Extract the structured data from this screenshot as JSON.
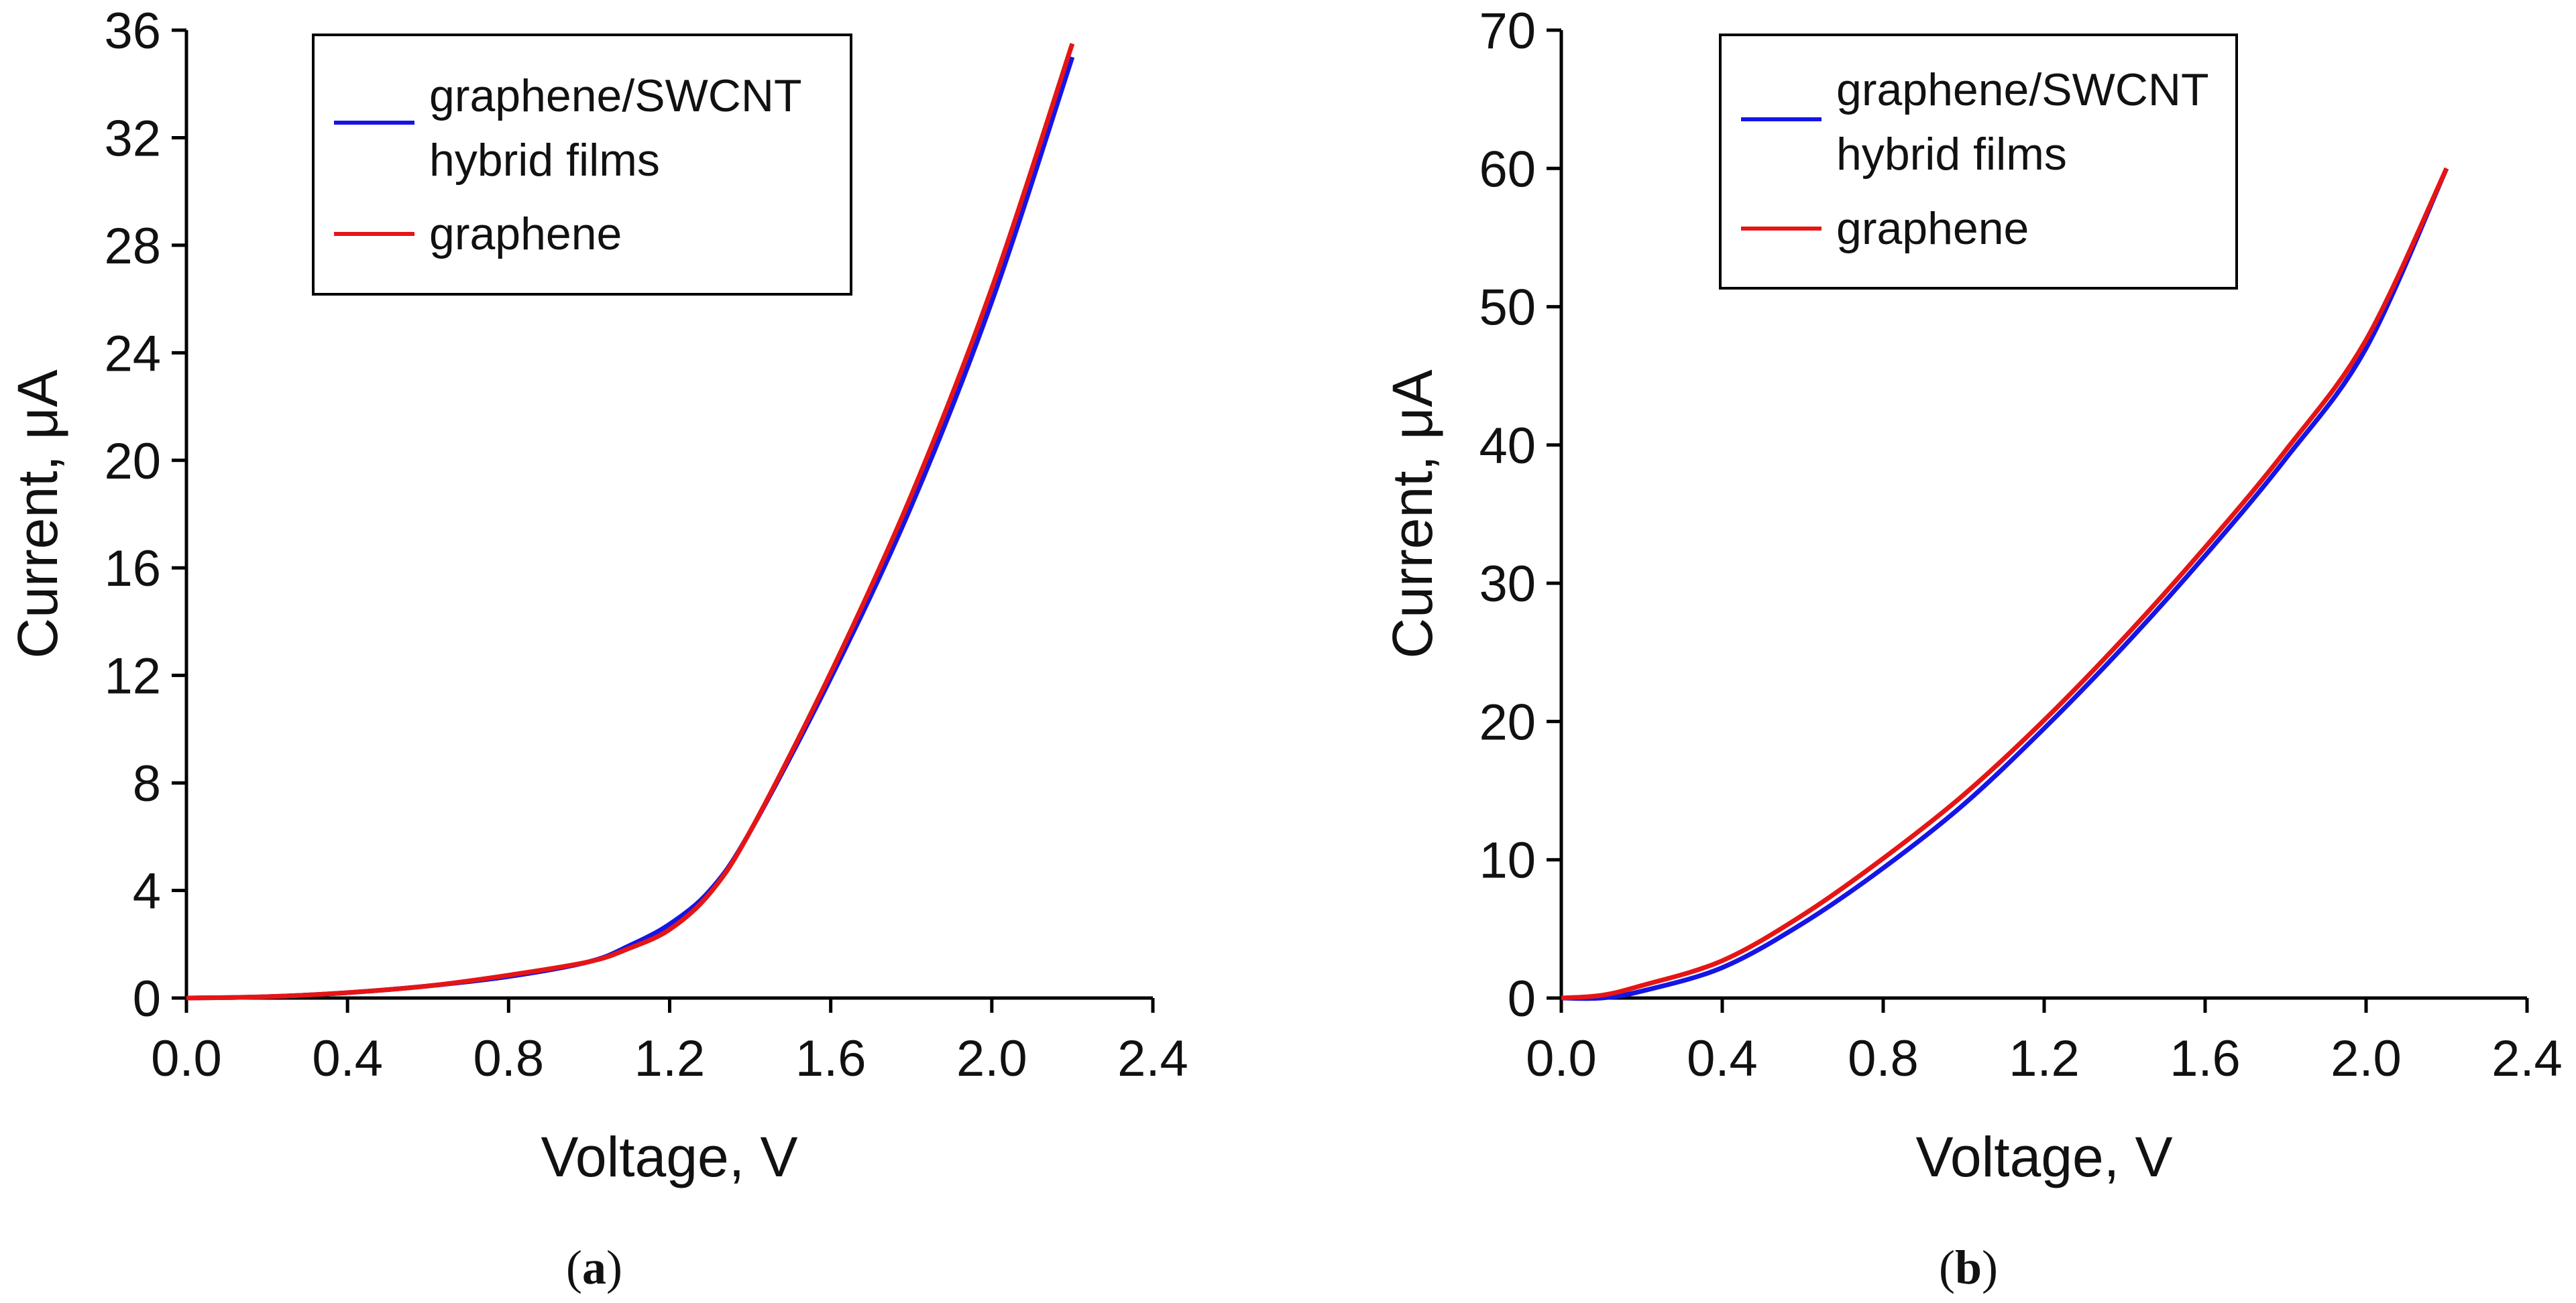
{
  "chart_data": [
    {
      "type": "line",
      "panel_label": {
        "open": "(",
        "letter": "a",
        "close": ")"
      },
      "xlabel": "Voltage, V",
      "ylabel": "Current, μA",
      "xlim": [
        0.0,
        2.4
      ],
      "ylim": [
        0,
        36
      ],
      "xticks": [
        0.0,
        0.4,
        0.8,
        1.2,
        1.6,
        2.0,
        2.4
      ],
      "xtick_labels": [
        "0.0",
        "0.4",
        "0.8",
        "1.2",
        "1.6",
        "2.0",
        "2.4"
      ],
      "yticks": [
        0,
        4,
        8,
        12,
        16,
        20,
        24,
        28,
        32,
        36
      ],
      "ytick_labels": [
        "0",
        "4",
        "8",
        "12",
        "16",
        "20",
        "24",
        "28",
        "32",
        "36"
      ],
      "legend_position": "top-left",
      "series": [
        {
          "name": "graphene/SWCNT hybrid films",
          "legend_lines": [
            "graphene/SWCNT",
            "hybrid films"
          ],
          "color": "#1515e6",
          "x": [
            0.0,
            0.2,
            0.4,
            0.6,
            0.8,
            1.0,
            1.1,
            1.2,
            1.3,
            1.4,
            1.6,
            1.8,
            2.0,
            2.2
          ],
          "y": [
            0.0,
            0.05,
            0.2,
            0.45,
            0.8,
            1.35,
            1.95,
            2.75,
            4.0,
            6.2,
            11.9,
            18.3,
            25.9,
            35.0
          ]
        },
        {
          "name": "graphene",
          "legend_lines": [
            "graphene"
          ],
          "color": "#e61515",
          "x": [
            0.0,
            0.2,
            0.4,
            0.6,
            0.8,
            1.0,
            1.1,
            1.2,
            1.3,
            1.4,
            1.6,
            1.8,
            2.0,
            2.2
          ],
          "y": [
            0.0,
            0.05,
            0.2,
            0.45,
            0.85,
            1.35,
            1.85,
            2.55,
            3.9,
            6.2,
            12.1,
            18.7,
            26.4,
            35.5
          ]
        }
      ]
    },
    {
      "type": "line",
      "panel_label": {
        "open": "(",
        "letter": "b",
        "close": ")"
      },
      "xlabel": "Voltage, V",
      "ylabel": "Current, μA",
      "xlim": [
        0.0,
        2.4
      ],
      "ylim": [
        0,
        70
      ],
      "xticks": [
        0.0,
        0.4,
        0.8,
        1.2,
        1.6,
        2.0,
        2.4
      ],
      "xtick_labels": [
        "0.0",
        "0.4",
        "0.8",
        "1.2",
        "1.6",
        "2.0",
        "2.4"
      ],
      "yticks": [
        0,
        10,
        20,
        30,
        40,
        50,
        60,
        70
      ],
      "ytick_labels": [
        "0",
        "10",
        "20",
        "30",
        "40",
        "50",
        "60",
        "70"
      ],
      "legend_position": "top-left",
      "series": [
        {
          "name": "graphene/SWCNT hybrid films",
          "legend_lines": [
            "graphene/SWCNT",
            "hybrid films"
          ],
          "color": "#1515e6",
          "x": [
            0.0,
            0.1,
            0.2,
            0.4,
            0.6,
            0.8,
            1.0,
            1.2,
            1.4,
            1.6,
            1.8,
            2.0,
            2.2
          ],
          "y": [
            0.0,
            0.0,
            0.5,
            2.2,
            5.4,
            9.4,
            14.0,
            19.5,
            25.5,
            32.0,
            39.0,
            47.0,
            60.0
          ]
        },
        {
          "name": "graphene",
          "legend_lines": [
            "graphene"
          ],
          "color": "#e61515",
          "x": [
            0.0,
            0.1,
            0.2,
            0.4,
            0.6,
            0.8,
            1.0,
            1.2,
            1.4,
            1.6,
            1.8,
            2.0,
            2.2
          ],
          "y": [
            0.0,
            0.2,
            0.9,
            2.7,
            6.0,
            10.1,
            14.7,
            20.1,
            26.1,
            32.6,
            39.6,
            47.6,
            60.0
          ]
        }
      ]
    }
  ]
}
